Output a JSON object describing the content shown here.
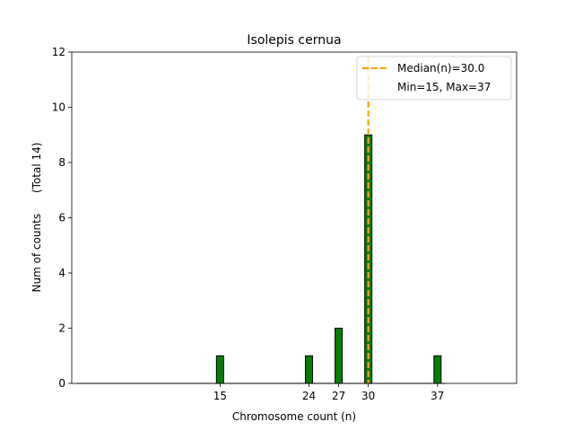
{
  "chart_data": {
    "type": "bar",
    "title": "Isolepis cernua",
    "xlabel": "Chromosome count (n)",
    "ylabel": "Num of counts      (Total 14)",
    "x": [
      15,
      24,
      27,
      30,
      37
    ],
    "values": [
      1,
      1,
      2,
      9,
      1
    ],
    "xticks": [
      15,
      24,
      27,
      30,
      37
    ],
    "yticks": [
      0,
      2,
      4,
      6,
      8,
      10,
      12
    ],
    "ylim": [
      0,
      12
    ],
    "xlim": [
      0,
      45
    ],
    "bar_color": "#008000",
    "median_line": {
      "x": 30.0,
      "color": "#FFA500",
      "style": "dashed"
    },
    "legend": {
      "placement": "top-right",
      "entries": [
        "Median(n)=30.0",
        "Min=15, Max=37"
      ]
    }
  }
}
